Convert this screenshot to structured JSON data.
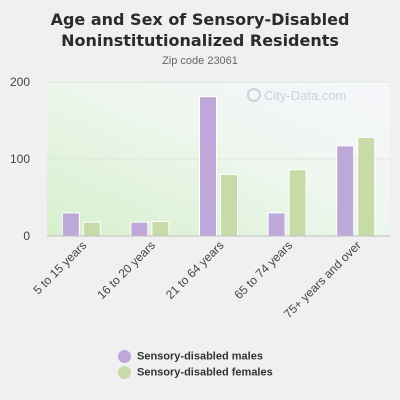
{
  "title": "Age and Sex of Sensory-Disabled Noninstitutionalized Residents",
  "subtitle": "Zip code 23061",
  "watermark": "City-Data.com",
  "colors": {
    "males": "#bda8d9",
    "females": "#c6dba8"
  },
  "chart_data": {
    "type": "bar",
    "categories": [
      "5 to 15 years",
      "16 to 20 years",
      "21 to 64 years",
      "65 to 74 years",
      "75+ years and over"
    ],
    "series": [
      {
        "name": "Sensory-disabled males",
        "values": [
          30,
          18,
          181,
          30,
          117
        ]
      },
      {
        "name": "Sensory-disabled females",
        "values": [
          18,
          19,
          80,
          86,
          128
        ]
      }
    ],
    "yticks": [
      0,
      100,
      200
    ],
    "ylim": [
      0,
      200
    ],
    "grid": true,
    "legend": "bottom"
  }
}
